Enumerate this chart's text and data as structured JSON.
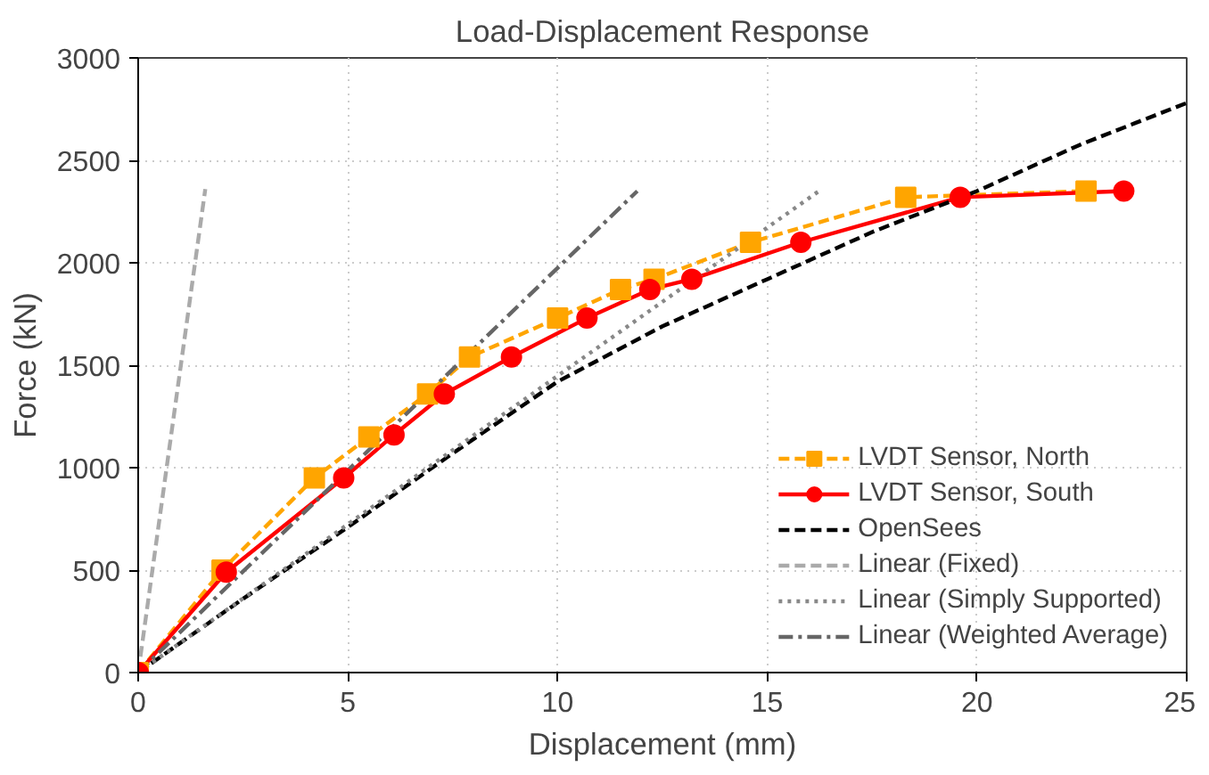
{
  "chart_data": {
    "type": "line",
    "title": "Load-Displacement Response",
    "xlabel": "Displacement (mm)",
    "ylabel": "Force (kN)",
    "xlim": [
      0,
      25
    ],
    "ylim": [
      0,
      3000
    ],
    "xticks": [
      0,
      5,
      10,
      15,
      20,
      25
    ],
    "yticks": [
      0,
      500,
      1000,
      1500,
      2000,
      2500,
      3000
    ],
    "grid": true,
    "legend": "bottom right",
    "series": [
      {
        "name": "LVDT Sensor, North",
        "color": "#ffa500",
        "marker": "square",
        "line_style": "dashed",
        "x": [
          0,
          2.0,
          4.2,
          5.5,
          6.9,
          7.9,
          10.0,
          11.5,
          12.3,
          14.6,
          18.3,
          22.6
        ],
        "values": [
          0,
          500,
          950,
          1150,
          1360,
          1540,
          1730,
          1870,
          1920,
          2100,
          2320,
          2350
        ]
      },
      {
        "name": "LVDT Sensor, South",
        "color": "#ff0000",
        "marker": "circle",
        "line_style": "solid",
        "x": [
          0,
          2.1,
          4.9,
          6.1,
          7.3,
          8.9,
          10.7,
          12.2,
          13.2,
          15.8,
          19.6,
          23.5
        ],
        "values": [
          0,
          490,
          950,
          1160,
          1360,
          1540,
          1730,
          1870,
          1920,
          2100,
          2320,
          2350
        ]
      },
      {
        "name": "OpenSees",
        "color": "#000000",
        "marker": "none",
        "line_style": "dashed",
        "x": [
          0,
          2.5,
          5,
          7.5,
          10,
          12.5,
          15,
          17.5,
          20,
          22.5,
          25
        ],
        "values": [
          0,
          360,
          710,
          1070,
          1420,
          1690,
          1920,
          2150,
          2350,
          2580,
          2780
        ]
      },
      {
        "name": "Linear (Fixed)",
        "color": "#aaaaaa",
        "marker": "none",
        "line_style": "dashed",
        "x": [
          0,
          1.6
        ],
        "values": [
          0,
          2360
        ]
      },
      {
        "name": "Linear (Simply Supported)",
        "color": "#888888",
        "marker": "none",
        "line_style": "dotted",
        "x": [
          0,
          16.3
        ],
        "values": [
          0,
          2360
        ]
      },
      {
        "name": "Linear (Weighted Average)",
        "color": "#666666",
        "marker": "none",
        "line_style": "dashdot",
        "x": [
          0,
          11.9
        ],
        "values": [
          0,
          2350
        ]
      }
    ]
  }
}
